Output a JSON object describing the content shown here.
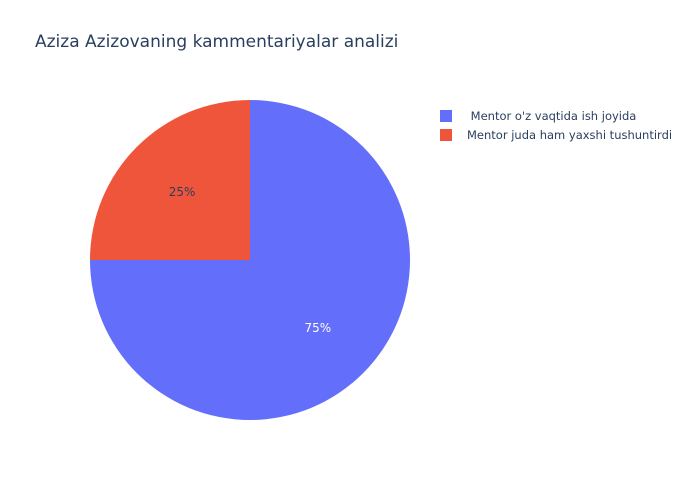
{
  "chart_data": {
    "type": "pie",
    "title": "Aziza Azizovaning kammentariyalar analizi",
    "slices": [
      {
        "label": " Mentor o'z vaqtida ish joyida",
        "value": 75,
        "display": "75%",
        "color": "#636efa",
        "text_color": "#ffffff"
      },
      {
        "label": "Mentor juda ham yaxshi tushuntirdi",
        "value": 25,
        "display": "25%",
        "color": "#ef553b",
        "text_color": "#2a3f5f"
      }
    ],
    "legend_position": "top-right",
    "start_angle_deg": 90,
    "direction": "clockwise"
  }
}
